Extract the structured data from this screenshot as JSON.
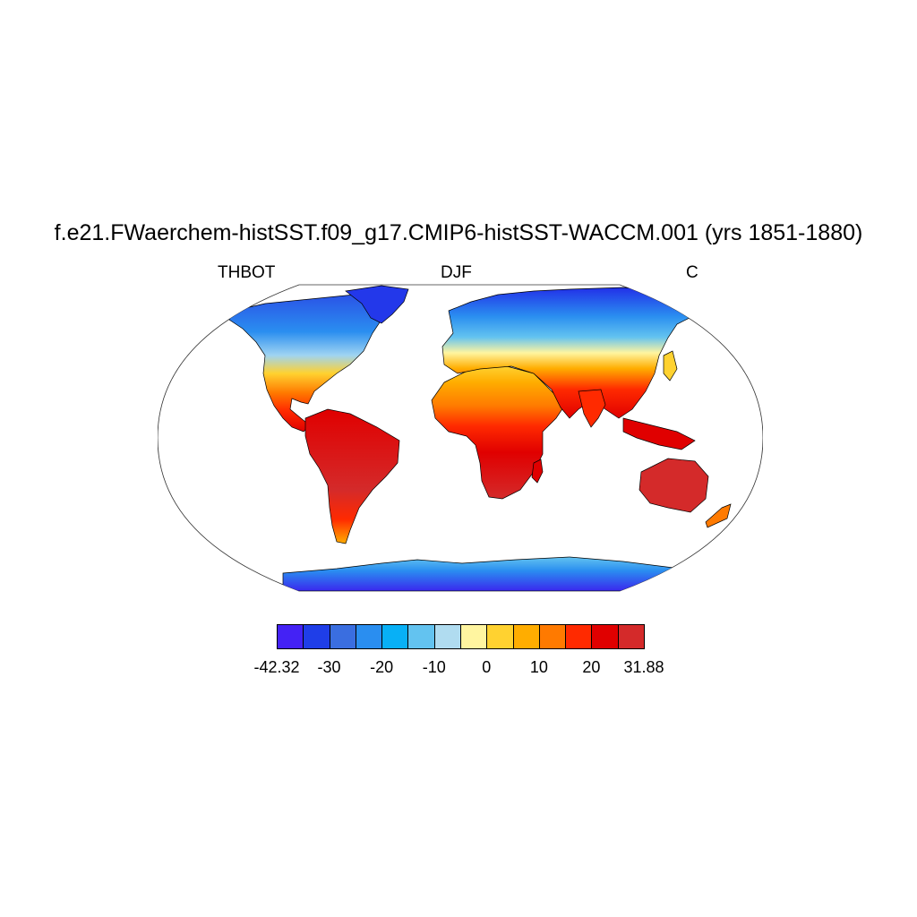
{
  "title": "f.e21.FWaerchem-histSST.f09_g17.CMIP6-histSST-WACCM.001 (yrs 1851-1880)",
  "variable": "THBOT",
  "season": "DJF",
  "units": "C",
  "map": {
    "projection": "Robinson",
    "field": "surface temperature, land only",
    "regions": [
      {
        "name": "north-america",
        "gradient": "cold north to warm south"
      },
      {
        "name": "south-america",
        "gradient": "warm"
      },
      {
        "name": "africa",
        "gradient": "warm"
      },
      {
        "name": "eurasia",
        "gradient": "cold north to warm south"
      },
      {
        "name": "australia",
        "gradient": "warm"
      },
      {
        "name": "antarctica",
        "gradient": "very cold"
      },
      {
        "name": "greenland",
        "gradient": "very cold"
      }
    ]
  },
  "colorbar": {
    "colors": [
      "#4422f5",
      "#1f3ee8",
      "#3a6ee0",
      "#2a8ef0",
      "#08b0f6",
      "#63c3f0",
      "#b0dcf0",
      "#fff5a0",
      "#ffd230",
      "#ffad00",
      "#ff7a00",
      "#ff2a00",
      "#e00000",
      "#d42a2a"
    ],
    "tick_labels": [
      "-42.32",
      "-30",
      "-20",
      "-10",
      "0",
      "10",
      "20",
      "31.88"
    ]
  }
}
